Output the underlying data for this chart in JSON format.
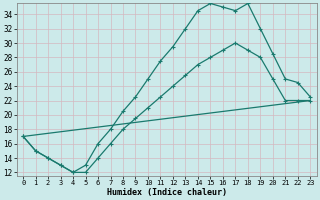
{
  "xlabel": "Humidex (Indice chaleur)",
  "background_color": "#cceaea",
  "grid_color": "#b0d8d8",
  "line_color": "#1a7a6e",
  "xlim": [
    -0.5,
    23.5
  ],
  "ylim": [
    11.5,
    35.5
  ],
  "xticks": [
    0,
    1,
    2,
    3,
    4,
    5,
    6,
    7,
    8,
    9,
    10,
    11,
    12,
    13,
    14,
    15,
    16,
    17,
    18,
    19,
    20,
    21,
    22,
    23
  ],
  "yticks": [
    12,
    14,
    16,
    18,
    20,
    22,
    24,
    26,
    28,
    30,
    32,
    34
  ],
  "line1_x": [
    0,
    1,
    2,
    3,
    4,
    5,
    6,
    7,
    8,
    9,
    10,
    11,
    12,
    13,
    14,
    15,
    16,
    17,
    18,
    19,
    20,
    21,
    22,
    23
  ],
  "line1_y": [
    17,
    15,
    14,
    13,
    12,
    13,
    16,
    18,
    20.5,
    22.5,
    25,
    27.5,
    29.5,
    32,
    34.5,
    35.5,
    35,
    34.5,
    35.5,
    32,
    28.5,
    25,
    24.5,
    22.5
  ],
  "line2_x": [
    0,
    1,
    2,
    3,
    4,
    5,
    6,
    7,
    8,
    9,
    10,
    11,
    12,
    13,
    14,
    15,
    16,
    17,
    18,
    19,
    20,
    21,
    22,
    23
  ],
  "line2_y": [
    17,
    15,
    14,
    13,
    12,
    12,
    14,
    16,
    18,
    19.5,
    21,
    22.5,
    24,
    25.5,
    27,
    28,
    29,
    30,
    29,
    28,
    25,
    22,
    22,
    22
  ],
  "line3_x": [
    0,
    23
  ],
  "line3_y": [
    17,
    22
  ]
}
